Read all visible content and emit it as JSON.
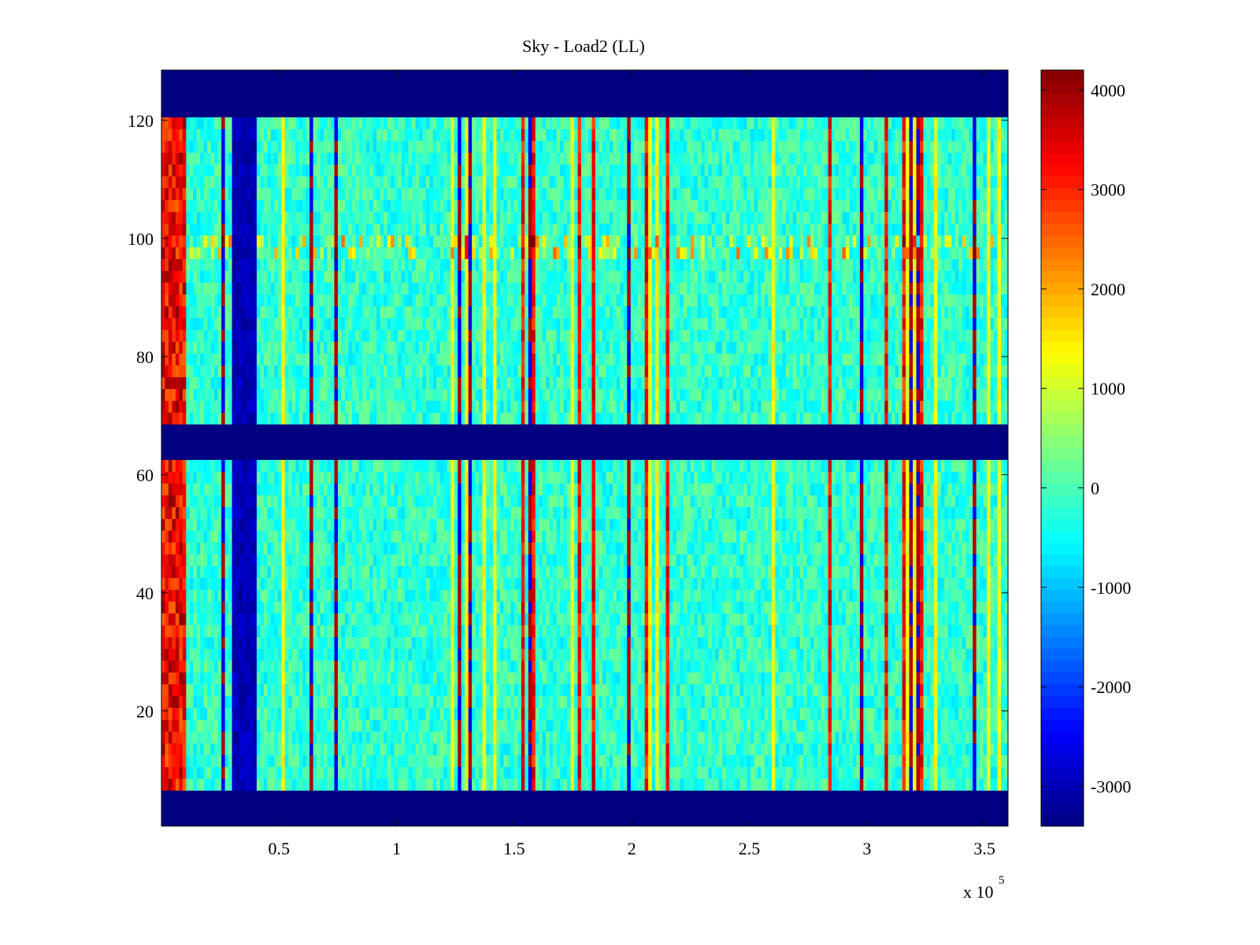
{
  "chart_data": {
    "type": "heatmap",
    "title": "Sky - Load2 (LL)",
    "xlabel": "",
    "ylabel": "",
    "x_multiplier": "x 10",
    "x_multiplier_exponent": "5",
    "xlim": [
      0,
      360000
    ],
    "ylim": [
      1,
      128
    ],
    "xticks": [
      {
        "value": 50000,
        "label": "0.5"
      },
      {
        "value": 100000,
        "label": "1"
      },
      {
        "value": 150000,
        "label": "1.5"
      },
      {
        "value": 200000,
        "label": "2"
      },
      {
        "value": 250000,
        "label": "2.5"
      },
      {
        "value": 300000,
        "label": "3"
      },
      {
        "value": 350000,
        "label": "3.5"
      }
    ],
    "yticks": [
      {
        "value": 20,
        "label": "20"
      },
      {
        "value": 40,
        "label": "40"
      },
      {
        "value": 60,
        "label": "60"
      },
      {
        "value": 80,
        "label": "80"
      },
      {
        "value": 100,
        "label": "100"
      },
      {
        "value": 120,
        "label": "120"
      }
    ],
    "colorbar": {
      "colormap": "jet",
      "range": [
        -3400,
        4200
      ],
      "ticks": [
        {
          "value": 4000,
          "label": "4000"
        },
        {
          "value": 3000,
          "label": "3000"
        },
        {
          "value": 2000,
          "label": "2000"
        },
        {
          "value": 1000,
          "label": "1000"
        },
        {
          "value": 0,
          "label": "0"
        },
        {
          "value": -1000,
          "label": "-1000"
        },
        {
          "value": -2000,
          "label": "-2000"
        },
        {
          "value": -3000,
          "label": "-3000"
        }
      ]
    },
    "masked_rows": [
      [
        1,
        7
      ],
      [
        63,
        69
      ],
      [
        122,
        128
      ]
    ],
    "masked_value": -3400,
    "hot_column_range": [
      0,
      10000
    ],
    "hot_column_value": 3300,
    "cold_column_range": [
      30000,
      40000
    ],
    "cold_column_value": -3000,
    "background_value": -200,
    "stripe_row_range": [
      98,
      101
    ]
  }
}
